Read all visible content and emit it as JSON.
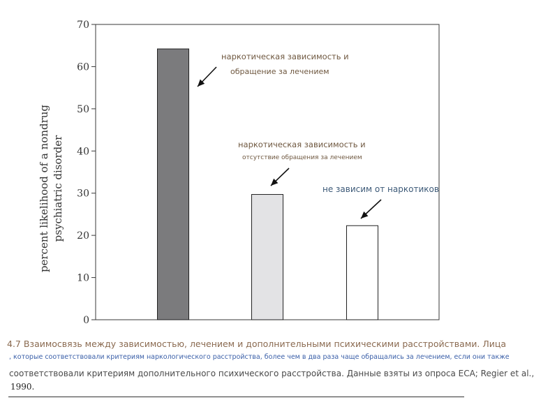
{
  "chart_data": {
    "type": "bar",
    "categories": [
      "",
      "",
      ""
    ],
    "values": [
      64.2,
      29.7,
      22.3
    ],
    "bar_colors": [
      "#7b7b7d",
      "#e3e3e5",
      "#ffffff"
    ],
    "ylabel_lines": [
      "percent likelihood of a nondrug",
      "psychiatric disorder"
    ],
    "ylim": [
      0,
      70
    ],
    "yticks": [
      "0",
      "10",
      "20",
      "30",
      "40",
      "50",
      "60",
      "70"
    ],
    "grid": false,
    "annotations": [
      {
        "lines": [
          "наркотическая зависимость и",
          "обращение за лечением"
        ]
      },
      {
        "lines": [
          "наркотическая зависимость и",
          "отсутствие обращения за лечением"
        ]
      },
      {
        "lines": [
          "не зависим от наркотиков"
        ]
      }
    ]
  },
  "caption": {
    "line1": "4.7 Взаимосвязь между зависимостью, лечением и дополнительными психическими расстройствами. Лица",
    "line2": ", которые соответствовали критериям наркологического расстройства, более чем в два раза чаще обращались за лечением, если они также",
    "line3": "соответствовали критериям дополнительного психического расстройства. Данные взяты из опроса ECA; Regier et al.,",
    "line4": "1990."
  }
}
